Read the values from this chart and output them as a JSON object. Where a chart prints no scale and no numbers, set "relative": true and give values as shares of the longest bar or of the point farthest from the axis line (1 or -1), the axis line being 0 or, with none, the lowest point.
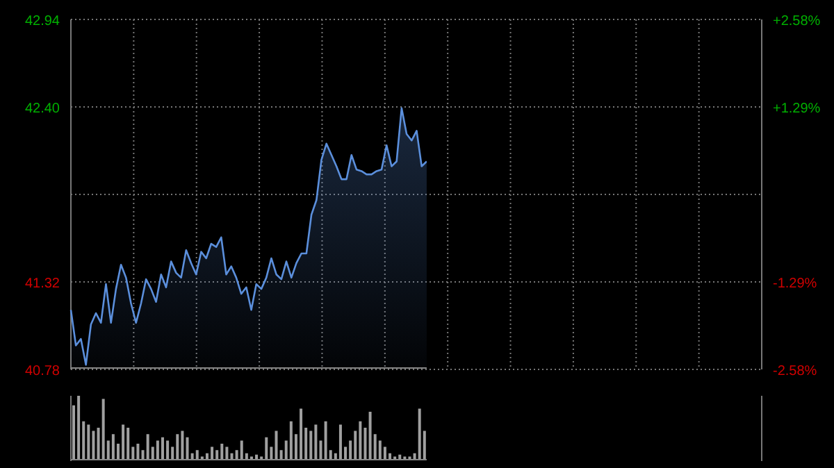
{
  "chart_data": [
    {
      "type": "area",
      "categories": [
        null,
        null,
        null,
        null,
        null,
        null,
        null,
        null,
        null,
        null,
        null,
        null,
        null,
        null,
        null,
        null,
        null,
        null,
        null,
        null,
        null,
        null,
        null,
        null,
        null,
        null,
        null,
        null,
        null,
        null,
        null,
        null,
        null,
        null,
        null,
        null,
        null,
        null,
        null,
        null,
        null,
        null,
        null,
        null,
        null,
        null,
        null,
        null,
        null,
        null,
        null,
        null,
        null,
        null,
        null,
        null,
        null,
        null,
        null,
        null,
        null,
        null,
        null,
        null,
        null,
        null,
        null,
        null,
        null,
        null,
        null,
        null
      ],
      "series": [
        {
          "color": "#5b8fdc",
          "values": [
            41.14,
            40.92,
            40.96,
            40.8,
            41.05,
            41.12,
            41.06,
            41.3,
            41.06,
            41.27,
            41.42,
            41.34,
            41.18,
            41.06,
            41.18,
            41.33,
            41.27,
            41.19,
            41.36,
            41.28,
            41.44,
            41.37,
            41.34,
            41.51,
            41.43,
            41.36,
            41.5,
            41.46,
            41.55,
            41.53,
            41.59,
            41.36,
            41.41,
            41.34,
            41.24,
            41.28,
            41.14,
            41.3,
            41.27,
            41.34,
            41.46,
            41.36,
            41.33,
            41.44,
            41.34,
            41.43,
            41.49,
            41.49,
            41.73,
            41.82,
            42.07,
            42.17,
            42.1,
            42.03,
            41.95,
            41.95,
            42.1,
            42.01,
            42.0,
            41.98,
            41.98,
            42.0,
            42.01,
            42.16,
            42.03,
            42.06,
            42.39,
            42.23,
            42.19,
            42.25,
            42.03,
            42.06
          ]
        }
      ],
      "ylim": [
        40.78,
        42.94
      ],
      "yticks": [
        {
          "value": 40.78,
          "label": "40.78"
        },
        {
          "value": 41.32,
          "label": "41.32"
        },
        {
          "value": 41.86,
          "label": null
        },
        {
          "value": 42.4,
          "label": "42.40"
        },
        {
          "value": 42.94,
          "label": "42.94"
        }
      ],
      "y2lim": [
        -2.58,
        2.58
      ],
      "y2ticks": [
        {
          "value": -2.58,
          "label": "-2.58%"
        },
        {
          "value": -1.29,
          "label": "-1.29%"
        },
        {
          "value": 0,
          "label": null
        },
        {
          "value": 1.29,
          "label": "+1.29%"
        },
        {
          "value": 2.58,
          "label": "+2.58%"
        }
      ],
      "grid": true,
      "legend": false
    },
    {
      "type": "bar",
      "relative": true,
      "categories": [
        null,
        null,
        null,
        null,
        null,
        null,
        null,
        null,
        null,
        null,
        null,
        null,
        null,
        null,
        null,
        null,
        null,
        null,
        null,
        null,
        null,
        null,
        null,
        null,
        null,
        null,
        null,
        null,
        null,
        null,
        null,
        null,
        null,
        null,
        null,
        null,
        null,
        null,
        null,
        null,
        null,
        null,
        null,
        null,
        null,
        null,
        null,
        null,
        null,
        null,
        null,
        null,
        null,
        null,
        null,
        null,
        null,
        null,
        null,
        null,
        null,
        null,
        null,
        null,
        null,
        null,
        null,
        null,
        null,
        null,
        null,
        null
      ],
      "series": [
        {
          "color": "#a0a0a0",
          "values": [
            0.85,
            1.0,
            0.6,
            0.55,
            0.45,
            0.5,
            0.95,
            0.3,
            0.4,
            0.25,
            0.55,
            0.5,
            0.2,
            0.25,
            0.15,
            0.4,
            0.2,
            0.3,
            0.35,
            0.3,
            0.2,
            0.4,
            0.45,
            0.35,
            0.1,
            0.15,
            0.05,
            0.1,
            0.2,
            0.15,
            0.25,
            0.2,
            0.1,
            0.15,
            0.3,
            0.1,
            0.05,
            0.08,
            0.05,
            0.35,
            0.2,
            0.45,
            0.15,
            0.3,
            0.6,
            0.4,
            0.8,
            0.5,
            0.45,
            0.55,
            0.3,
            0.6,
            0.15,
            0.1,
            0.55,
            0.2,
            0.3,
            0.45,
            0.6,
            0.5,
            0.75,
            0.4,
            0.3,
            0.2,
            0.1,
            0.05,
            0.08,
            0.05,
            0.05,
            0.1,
            0.8,
            0.45
          ]
        }
      ],
      "legend": false
    }
  ]
}
